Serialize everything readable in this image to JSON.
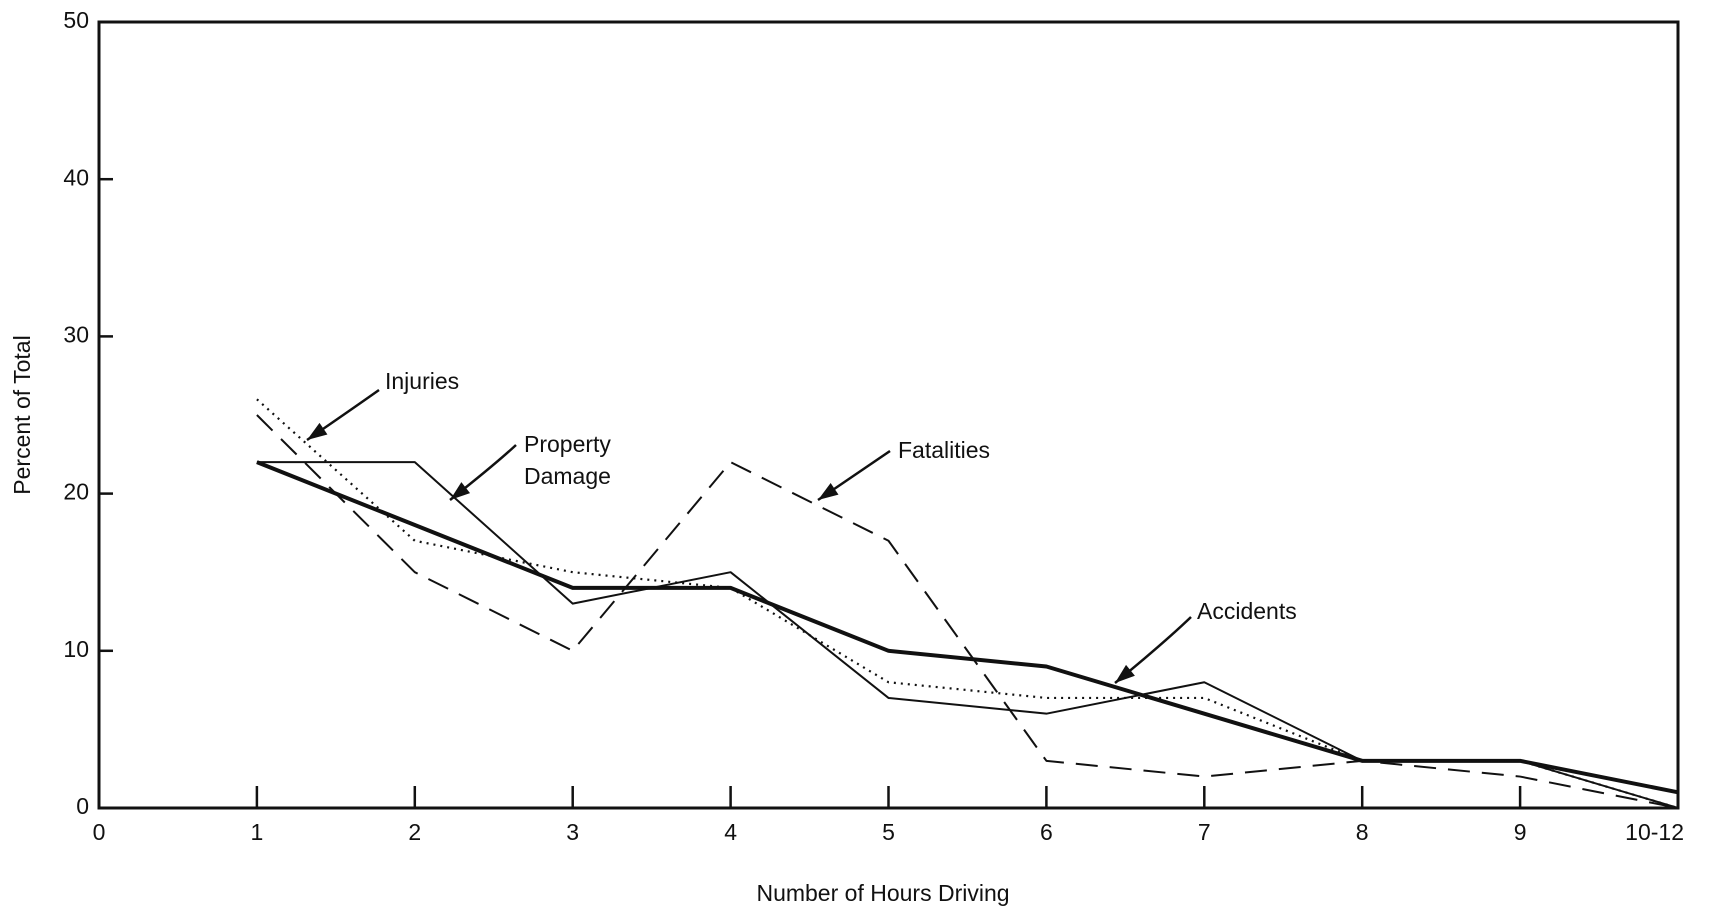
{
  "chart_data": {
    "type": "line",
    "xlabel": "Number of Hours Driving",
    "ylabel": "Percent of Total",
    "x": [
      1,
      2,
      3,
      4,
      5,
      6,
      7,
      8,
      9,
      10
    ],
    "xlim": [
      0,
      10
    ],
    "xticks": [
      0,
      1,
      2,
      3,
      4,
      5,
      6,
      7,
      8,
      9,
      {
        "value": 10,
        "label": "10-12"
      }
    ],
    "ylim": [
      0,
      50
    ],
    "yticks": [
      0,
      10,
      20,
      30,
      40,
      50
    ],
    "grid": false,
    "series": [
      {
        "name": "Accidents",
        "color": "#111111",
        "style": "solid",
        "width": 4,
        "values": [
          22,
          18,
          14,
          14,
          10,
          9,
          6,
          3,
          3,
          1
        ]
      },
      {
        "name": "Property Damage",
        "color": "#111111",
        "style": "solid",
        "width": 2,
        "values": [
          22,
          22,
          13,
          15,
          7,
          6,
          8,
          3,
          3,
          0
        ]
      },
      {
        "name": "Injuries",
        "color": "#111111",
        "style": "dotted",
        "width": 2.2,
        "values": [
          26,
          17,
          15,
          14,
          8,
          7,
          7,
          3,
          3,
          0
        ]
      },
      {
        "name": "Fatalities",
        "color": "#111111",
        "style": "dashed",
        "width": 2,
        "values": [
          25,
          15,
          10,
          22,
          17,
          3,
          2,
          3,
          2,
          0
        ]
      }
    ]
  }
}
